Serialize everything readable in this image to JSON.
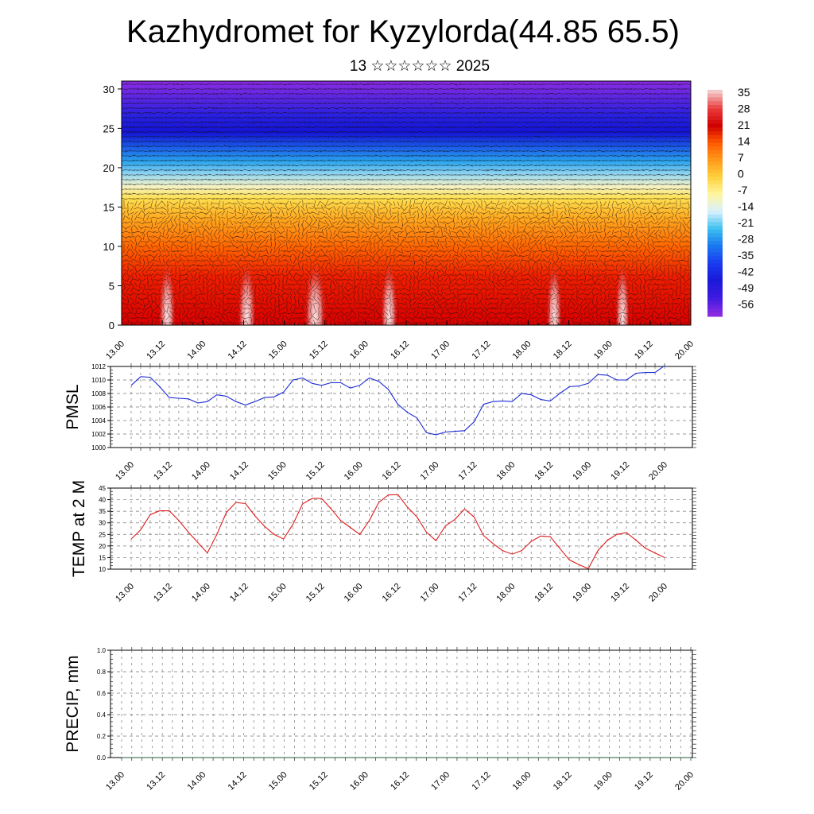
{
  "header": {
    "title": "Kazhydromet for Kyzylorda(44.85 65.5)",
    "subtitle": "13 ☆☆☆☆☆☆ 2025"
  },
  "colors": {
    "pmsl_line": "#1a2bd6",
    "temp_line": "#e01b1b",
    "precip_line": "#1f5f3a",
    "grid": "#777777"
  },
  "time_ticks": [
    "13.00",
    "13.12",
    "14.00",
    "14.12",
    "15.00",
    "15.12",
    "16.00",
    "16.12",
    "17.00",
    "17.12",
    "18.00",
    "18.12",
    "19.00",
    "19.12",
    "20.00"
  ],
  "chart_data": [
    {
      "type": "heatmap",
      "y_ticks": [
        "0",
        "5",
        "10",
        "15",
        "20",
        "25",
        "30"
      ],
      "ylim": [
        0,
        31
      ],
      "colorbar": {
        "labels": [
          "35",
          "28",
          "21",
          "14",
          "7",
          "0",
          "-7",
          "-14",
          "-21",
          "-28",
          "-35",
          "-42",
          "-49",
          "-56"
        ],
        "stops": [
          "#f5c8c8",
          "#e83a3a",
          "#d10000",
          "#ff5a00",
          "#ff9a1a",
          "#ffd23c",
          "#fff6a0",
          "#d8f0ff",
          "#3cc0f0",
          "#1a78f0",
          "#1a3cf0",
          "#1a1ad8",
          "#3c1ae0",
          "#8a2be2"
        ]
      }
    },
    {
      "type": "line",
      "ylabel": "PMSL",
      "ylim": [
        1000,
        1012
      ],
      "y_ticks": [
        "1000",
        "1002",
        "1004",
        "1006",
        "1008",
        "1010",
        "1012"
      ],
      "series": [
        {
          "values": [
            1009.2,
            1010.5,
            1010.4,
            1009.0,
            1007.4,
            1007.3,
            1007.2,
            1006.6,
            1006.8,
            1007.8,
            1007.6,
            1006.8,
            1006.3,
            1006.8,
            1007.4,
            1007.5,
            1008.2,
            1010.0,
            1010.3,
            1009.5,
            1009.2,
            1009.6,
            1009.6,
            1008.8,
            1009.2,
            1010.3,
            1009.8,
            1008.6,
            1006.4,
            1005.2,
            1004.4,
            1002.2,
            1001.9,
            1002.3,
            1002.4,
            1002.5,
            1003.8,
            1006.4,
            1006.8,
            1006.9,
            1006.8,
            1008.0,
            1007.8,
            1007.1,
            1006.9,
            1008.0,
            1009.0,
            1009.1,
            1009.5,
            1010.8,
            1010.7,
            1010.0,
            1010.0,
            1011.0,
            1011.1,
            1011.1,
            1012.1
          ]
        }
      ]
    },
    {
      "type": "line",
      "ylabel": "TEMP at 2 M",
      "ylim": [
        10,
        45
      ],
      "y_ticks": [
        "10",
        "15",
        "20",
        "25",
        "30",
        "35",
        "40",
        "45"
      ],
      "series": [
        {
          "values": [
            23,
            27,
            33.5,
            35.2,
            35.2,
            31,
            26,
            21.5,
            17,
            25,
            34.5,
            38.8,
            38.3,
            33,
            28.5,
            25,
            23,
            29.5,
            38.2,
            40.5,
            40.5,
            36,
            31,
            28,
            25,
            31,
            38.8,
            42,
            42.2,
            36.8,
            32.5,
            26,
            22.3,
            28.7,
            31.5,
            36,
            32.5,
            24.5,
            21,
            18,
            16.5,
            18,
            22,
            24.3,
            24,
            19,
            14,
            12,
            10.2,
            18,
            22.5,
            25,
            25.8,
            22.5,
            19,
            17,
            15
          ]
        }
      ]
    },
    {
      "type": "line",
      "ylabel": "PRECIP, mm",
      "ylim": [
        0,
        1
      ],
      "y_ticks": [
        "0.0",
        "0.2",
        "0.4",
        "0.6",
        "0.8",
        "1.0"
      ],
      "series": [
        {
          "values": [
            0,
            0,
            0,
            0,
            0,
            0,
            0,
            0,
            0,
            0,
            0,
            0,
            0,
            0,
            0,
            0,
            0,
            0,
            0,
            0,
            0,
            0,
            0,
            0,
            0,
            0,
            0,
            0,
            0,
            0,
            0,
            0,
            0,
            0,
            0,
            0,
            0,
            0,
            0,
            0,
            0,
            0,
            0,
            0,
            0,
            0,
            0,
            0,
            0,
            0,
            0,
            0,
            0,
            0,
            0,
            0,
            0
          ]
        }
      ]
    }
  ]
}
